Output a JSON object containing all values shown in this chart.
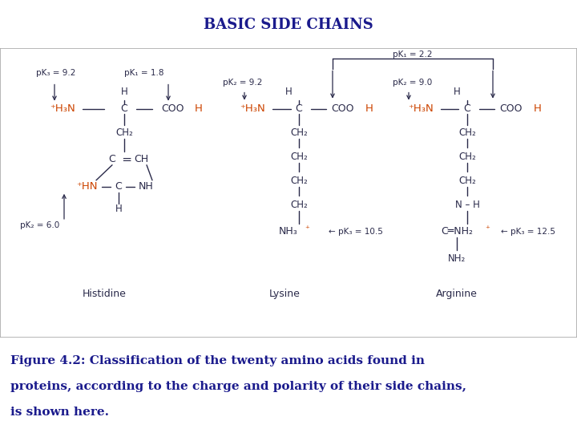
{
  "title": "BASIC SIDE CHAINS",
  "title_color": "#1a1a8c",
  "title_fontsize": 13,
  "bg_color": "#f0ddb8",
  "white_color": "#ffffff",
  "border_color": "#999999",
  "caption_line1": "Figure 4.2: Classification of the twenty amino acids found in",
  "caption_line2": "proteins, according to the charge and polarity of their side chains,",
  "caption_line3": "is shown here.",
  "caption_color": "#1a1a8c",
  "caption_fontsize": 11,
  "orange": "#cc4400",
  "dark": "#2a2a4a",
  "arrow_color": "#333333"
}
